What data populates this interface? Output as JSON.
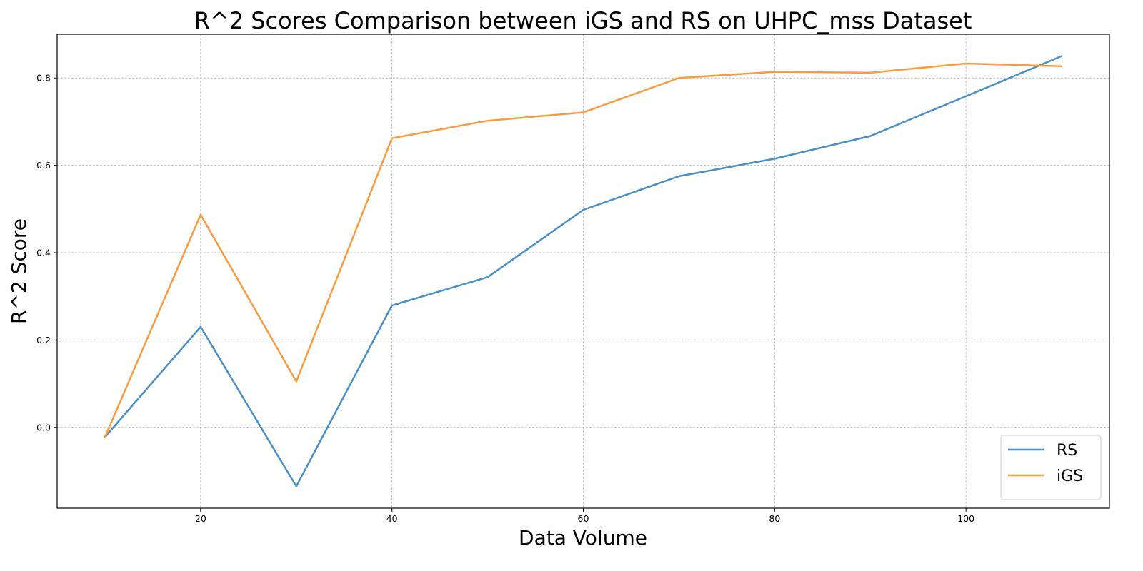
{
  "chart_data": {
    "type": "line",
    "title": "R^2 Scores Comparison between iGS and RS on UHPC_mss Dataset",
    "xlabel": "Data Volume",
    "ylabel": "R^2 Score",
    "x": [
      10,
      20,
      30,
      40,
      50,
      60,
      70,
      80,
      90,
      100,
      110
    ],
    "xlim": [
      5,
      115
    ],
    "ylim": [
      -0.185,
      0.9
    ],
    "xticks": [
      20,
      40,
      60,
      80,
      100
    ],
    "yticks": [
      0.0,
      0.2,
      0.4,
      0.6,
      0.8
    ],
    "grid": true,
    "legend_position": "lower-right",
    "series": [
      {
        "name": "RS",
        "color": "#4a8fc4",
        "values": [
          -0.022,
          0.23,
          -0.135,
          0.279,
          0.344,
          0.498,
          0.575,
          0.615,
          0.667,
          0.758,
          0.85
        ]
      },
      {
        "name": "iGS",
        "color": "#f99b3f",
        "values": [
          -0.022,
          0.487,
          0.105,
          0.662,
          0.702,
          0.721,
          0.8,
          0.814,
          0.812,
          0.833,
          0.827
        ]
      }
    ]
  }
}
